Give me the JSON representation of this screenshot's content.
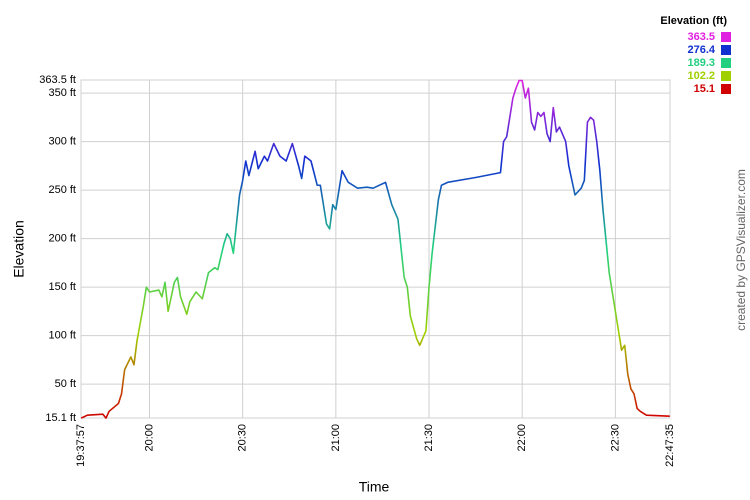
{
  "chart_data": {
    "type": "line",
    "xlabel": "Time",
    "ylabel": "Elevation",
    "legend_title": "Elevation (ft)",
    "legend": [
      {
        "value": 363.5,
        "label": "363.5",
        "color": "#e020e0"
      },
      {
        "value": 276.4,
        "label": "276.4",
        "color": "#1030d0"
      },
      {
        "value": 189.3,
        "label": "189.3",
        "color": "#20d080"
      },
      {
        "value": 102.2,
        "label": "102.2",
        "color": "#a0d000"
      },
      {
        "value": 15.1,
        "label": "15.1",
        "color": "#d00000"
      }
    ],
    "credit": "created by GPSVisualizer.com",
    "xlim": [
      1177.95,
      1367.583
    ],
    "xticks": [
      {
        "value": 1177.95,
        "label": "19:37:57"
      },
      {
        "value": 1200,
        "label": "20:00"
      },
      {
        "value": 1230,
        "label": "20:30"
      },
      {
        "value": 1260,
        "label": "21:00"
      },
      {
        "value": 1290,
        "label": "21:30"
      },
      {
        "value": 1320,
        "label": "22:00"
      },
      {
        "value": 1350,
        "label": "22:30"
      },
      {
        "value": 1367.583,
        "label": "22:47:35"
      }
    ],
    "ylim": [
      15.1,
      363.5
    ],
    "yticks": [
      {
        "value": 15.1,
        "label": "15.1 ft"
      },
      {
        "value": 50,
        "label": "50 ft"
      },
      {
        "value": 100,
        "label": "100 ft"
      },
      {
        "value": 150,
        "label": "150 ft"
      },
      {
        "value": 200,
        "label": "200 ft"
      },
      {
        "value": 250,
        "label": "250 ft"
      },
      {
        "value": 300,
        "label": "300 ft"
      },
      {
        "value": 350,
        "label": "350 ft"
      },
      {
        "value": 363.5,
        "label": "363.5 ft"
      }
    ],
    "grid": true,
    "series": [
      {
        "x": [
          1178,
          1180,
          1185,
          1186,
          1187,
          1190,
          1191,
          1192,
          1194,
          1195,
          1196,
          1198,
          1199,
          1200,
          1203,
          1204,
          1205,
          1206,
          1208,
          1209,
          1210,
          1212,
          1213,
          1215,
          1217,
          1219,
          1221,
          1222,
          1224,
          1225,
          1226,
          1227,
          1228,
          1229,
          1230,
          1231,
          1232,
          1234,
          1235,
          1237,
          1238,
          1240,
          1242,
          1244,
          1246,
          1248,
          1249,
          1250,
          1252,
          1254,
          1255,
          1257,
          1258,
          1259,
          1260,
          1262,
          1264,
          1267,
          1270,
          1272,
          1276,
          1278,
          1280,
          1282,
          1283,
          1284,
          1286,
          1287,
          1289,
          1290,
          1291,
          1293,
          1294,
          1296,
          1305,
          1313,
          1314,
          1315,
          1317,
          1318,
          1319,
          1320,
          1321,
          1322,
          1323,
          1324,
          1325,
          1326,
          1327,
          1328,
          1329,
          1330,
          1331,
          1332,
          1334,
          1335,
          1337,
          1339,
          1340,
          1341,
          1342,
          1343,
          1344,
          1345,
          1346,
          1348,
          1349,
          1351,
          1352,
          1353,
          1354,
          1355,
          1356,
          1357,
          1358,
          1360,
          1367.5
        ],
        "values": [
          15,
          18,
          19,
          15,
          22,
          30,
          40,
          65,
          78,
          70,
          95,
          130,
          150,
          145,
          147,
          140,
          155,
          125,
          155,
          160,
          140,
          122,
          135,
          145,
          138,
          165,
          170,
          168,
          195,
          205,
          200,
          185,
          215,
          245,
          260,
          280,
          265,
          290,
          272,
          285,
          280,
          298,
          285,
          280,
          298,
          275,
          262,
          285,
          280,
          255,
          255,
          215,
          210,
          235,
          230,
          270,
          258,
          252,
          253,
          252,
          258,
          235,
          220,
          160,
          150,
          120,
          97,
          90,
          105,
          150,
          185,
          240,
          255,
          258,
          263,
          268,
          300,
          305,
          345,
          355,
          363,
          363,
          345,
          355,
          320,
          312,
          330,
          326,
          330,
          308,
          300,
          335,
          310,
          315,
          300,
          275,
          245,
          252,
          260,
          320,
          325,
          322,
          300,
          270,
          230,
          165,
          145,
          105,
          85,
          90,
          60,
          45,
          40,
          25,
          22,
          18,
          17
        ]
      }
    ]
  }
}
